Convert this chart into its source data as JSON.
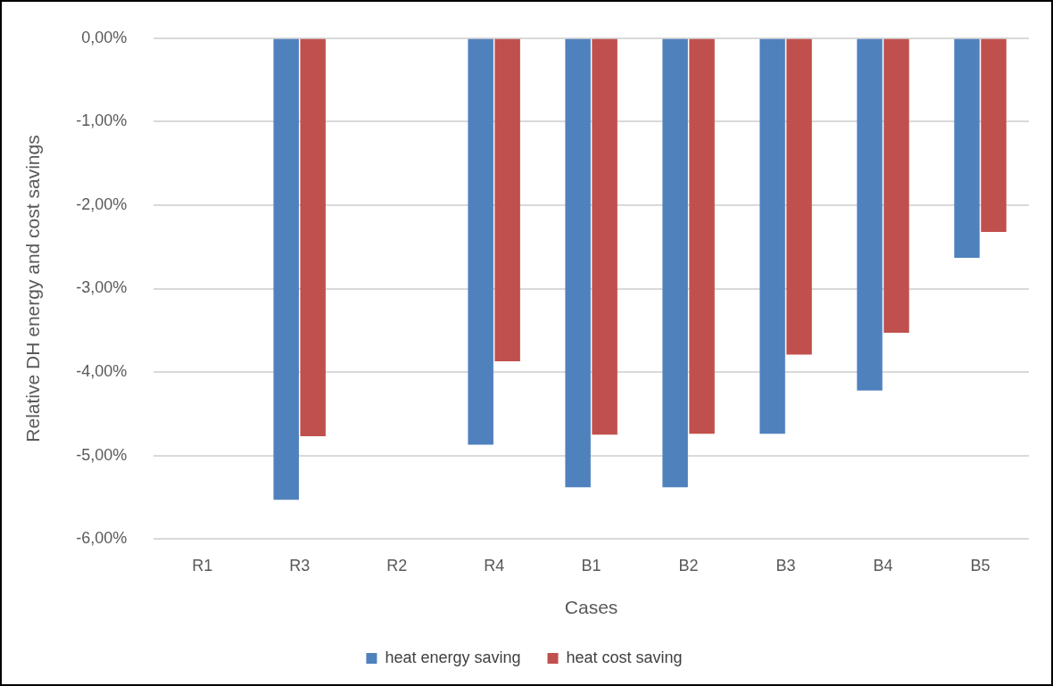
{
  "chart_data": {
    "type": "bar",
    "xlabel": "Cases",
    "ylabel": "Relative DH energy and cost savings",
    "categories": [
      "R1",
      "R3",
      "R2",
      "R4",
      "B1",
      "B2",
      "B3",
      "B4",
      "B5"
    ],
    "series": [
      {
        "name": "heat energy saving",
        "color": "#4f81bd",
        "values": [
          null,
          -5.53,
          null,
          -4.87,
          -5.38,
          -5.38,
          -4.74,
          -4.22,
          -2.63
        ]
      },
      {
        "name": "heat cost saving",
        "color": "#c0504d",
        "values": [
          null,
          -4.77,
          null,
          -3.87,
          -4.75,
          -4.74,
          -3.79,
          -3.53,
          -2.32
        ]
      }
    ],
    "ylim": [
      -6,
      0
    ],
    "yticks": [
      {
        "value": 0,
        "label": "0,00%"
      },
      {
        "value": -1,
        "label": "-1,00%"
      },
      {
        "value": -2,
        "label": "-2,00%"
      },
      {
        "value": -3,
        "label": "-3,00%"
      },
      {
        "value": -4,
        "label": "-4,00%"
      },
      {
        "value": -5,
        "label": "-5,00%"
      },
      {
        "value": -6,
        "label": "-6,00%"
      }
    ],
    "grid": "y",
    "legend": "bottom"
  }
}
